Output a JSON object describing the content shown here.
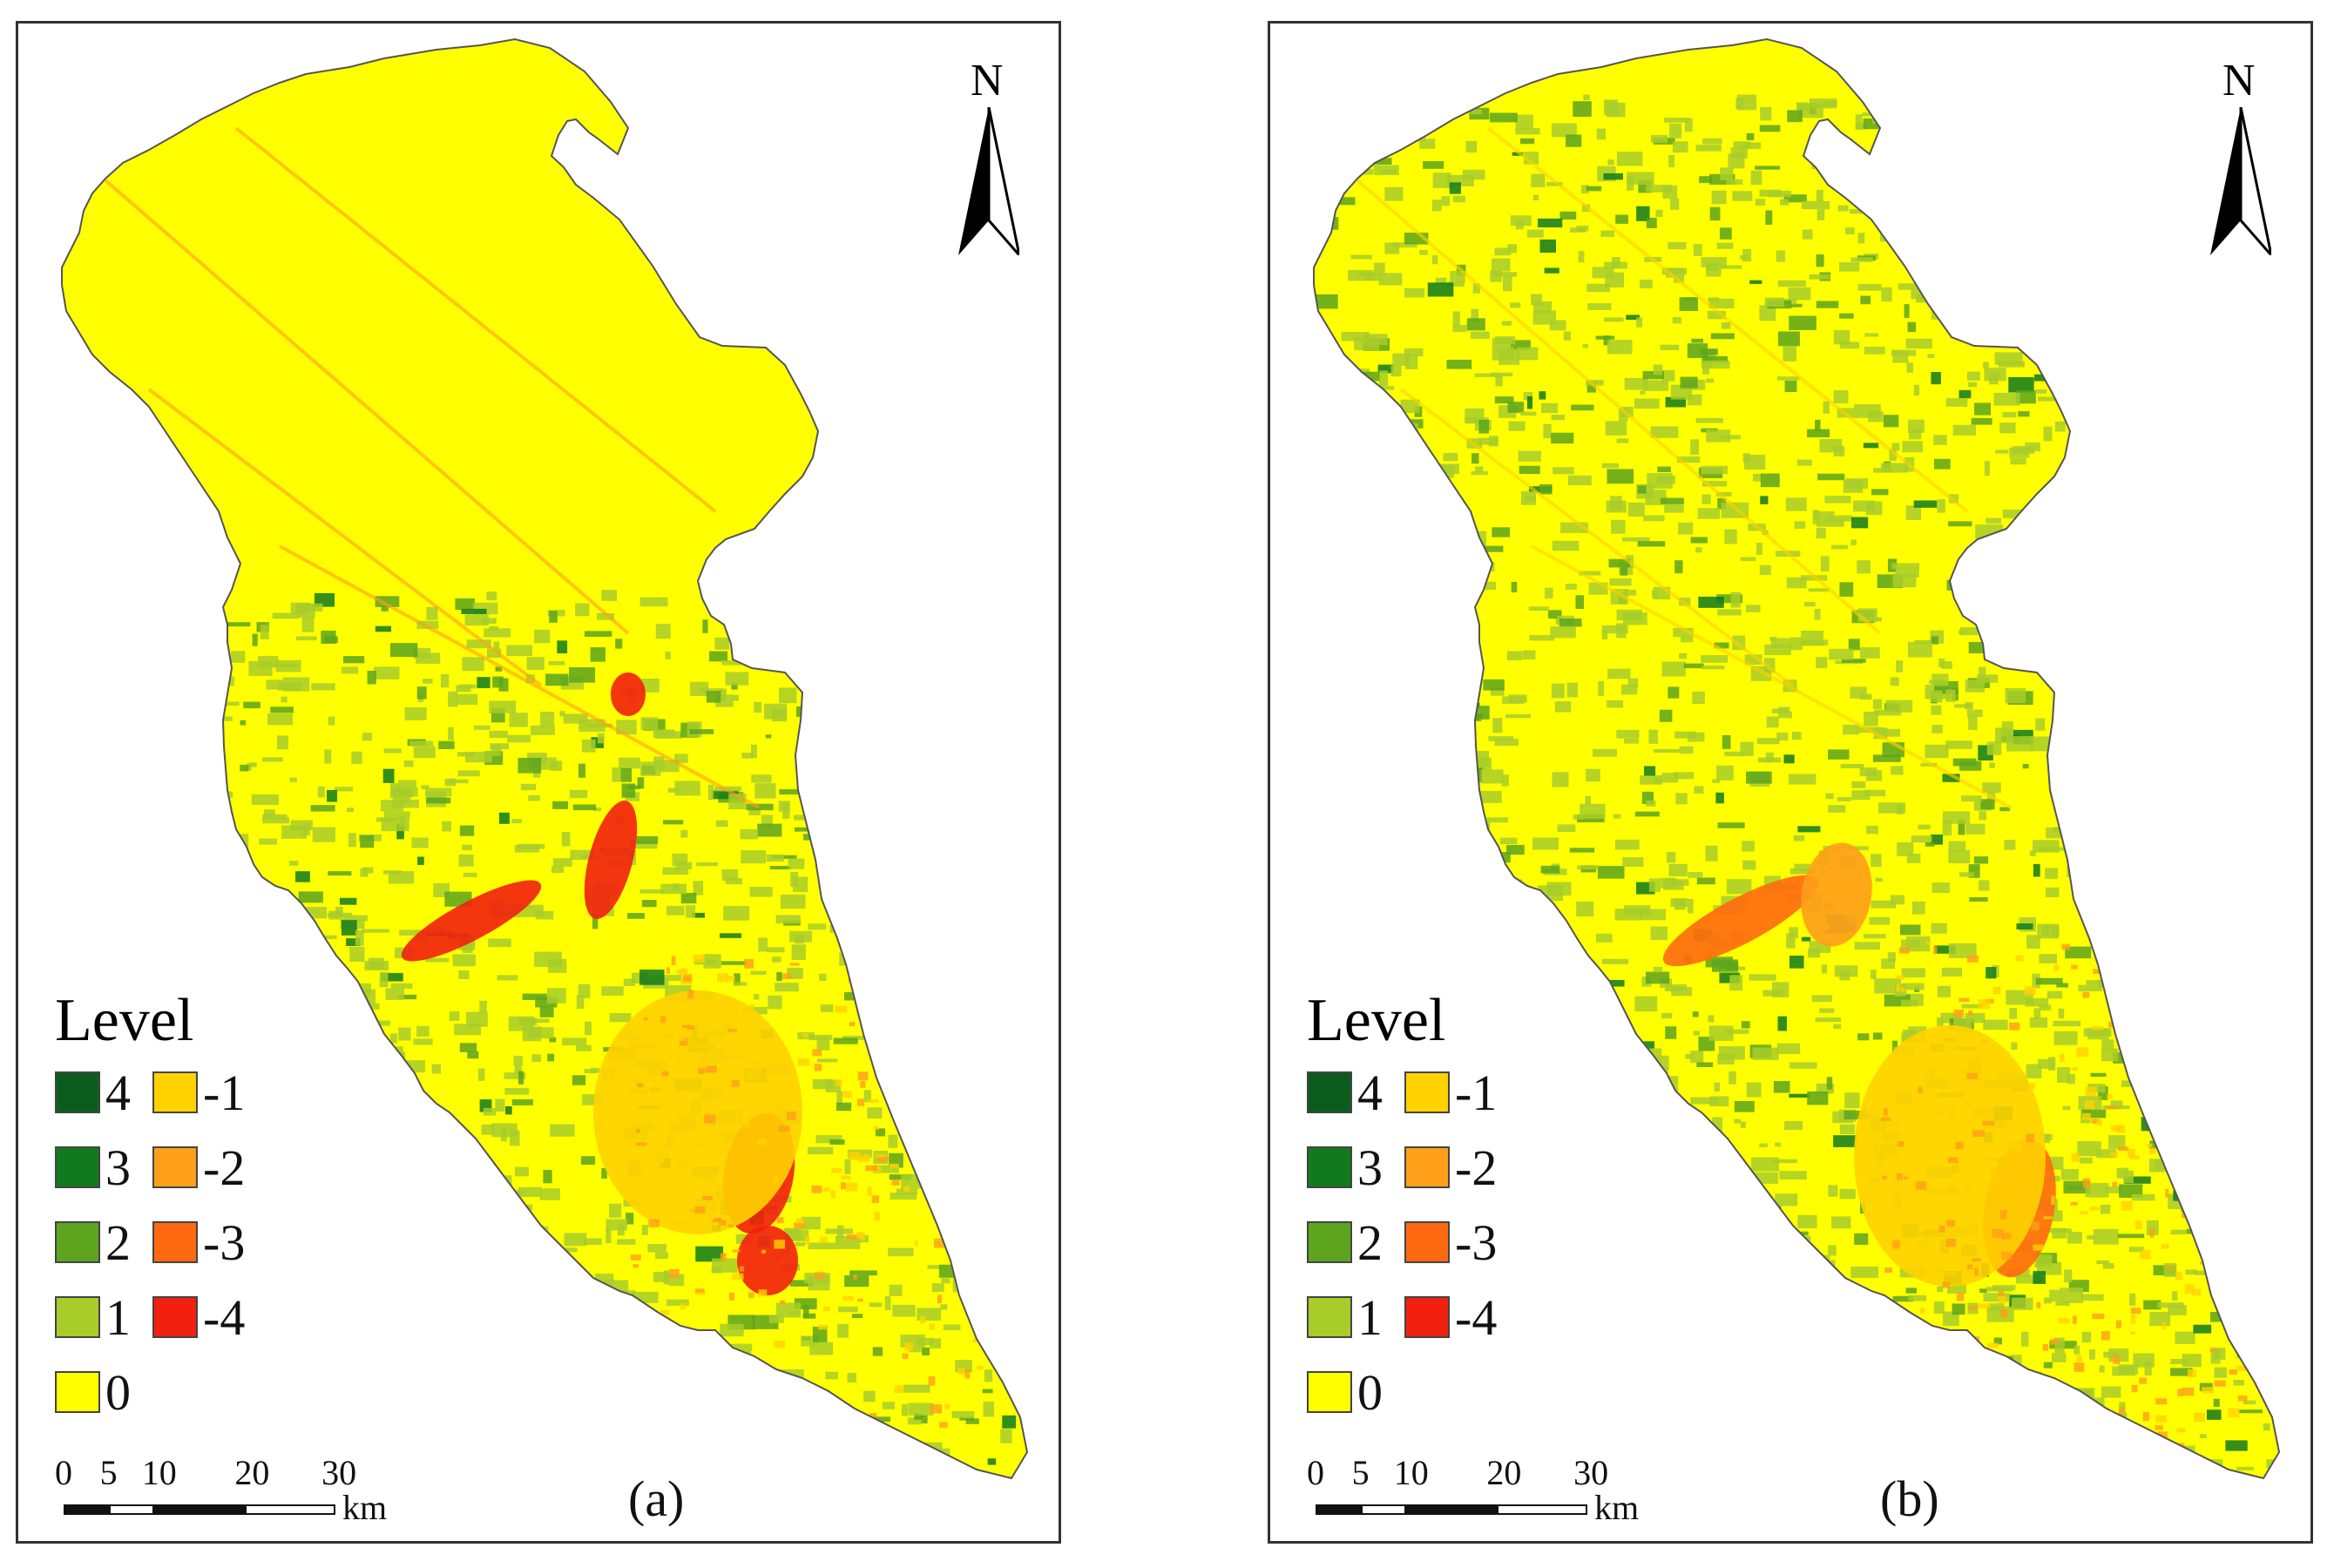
{
  "panels": [
    {
      "label": "(a)",
      "variant": "a",
      "north_label": "N",
      "legend": {
        "title": "Level",
        "items": [
          {
            "label": "4",
            "color": "#0b5d1e"
          },
          {
            "label": "3",
            "color": "#117a1f"
          },
          {
            "label": "2",
            "color": "#5da51f"
          },
          {
            "label": "1",
            "color": "#a8cc2a"
          },
          {
            "label": "0",
            "color": "#ffff00"
          },
          {
            "label": "-1",
            "color": "#ffd200"
          },
          {
            "label": "-2",
            "color": "#ff9f1a"
          },
          {
            "label": "-3",
            "color": "#ff6a10"
          },
          {
            "label": "-4",
            "color": "#f2200f"
          }
        ]
      },
      "scale": {
        "ticks": [
          "0",
          "5",
          "10",
          "20",
          "30"
        ],
        "unit": "km"
      }
    },
    {
      "label": "(b)",
      "variant": "b",
      "north_label": "N",
      "legend": {
        "title": "Level",
        "items": [
          {
            "label": "4",
            "color": "#0b5d1e"
          },
          {
            "label": "3",
            "color": "#117a1f"
          },
          {
            "label": "2",
            "color": "#5da51f"
          },
          {
            "label": "1",
            "color": "#a8cc2a"
          },
          {
            "label": "0",
            "color": "#ffff00"
          },
          {
            "label": "-1",
            "color": "#ffd200"
          },
          {
            "label": "-2",
            "color": "#ff9f1a"
          },
          {
            "label": "-3",
            "color": "#ff6a10"
          },
          {
            "label": "-4",
            "color": "#f2200f"
          }
        ]
      },
      "scale": {
        "ticks": [
          "0",
          "5",
          "10",
          "20",
          "30"
        ],
        "unit": "km"
      }
    }
  ]
}
